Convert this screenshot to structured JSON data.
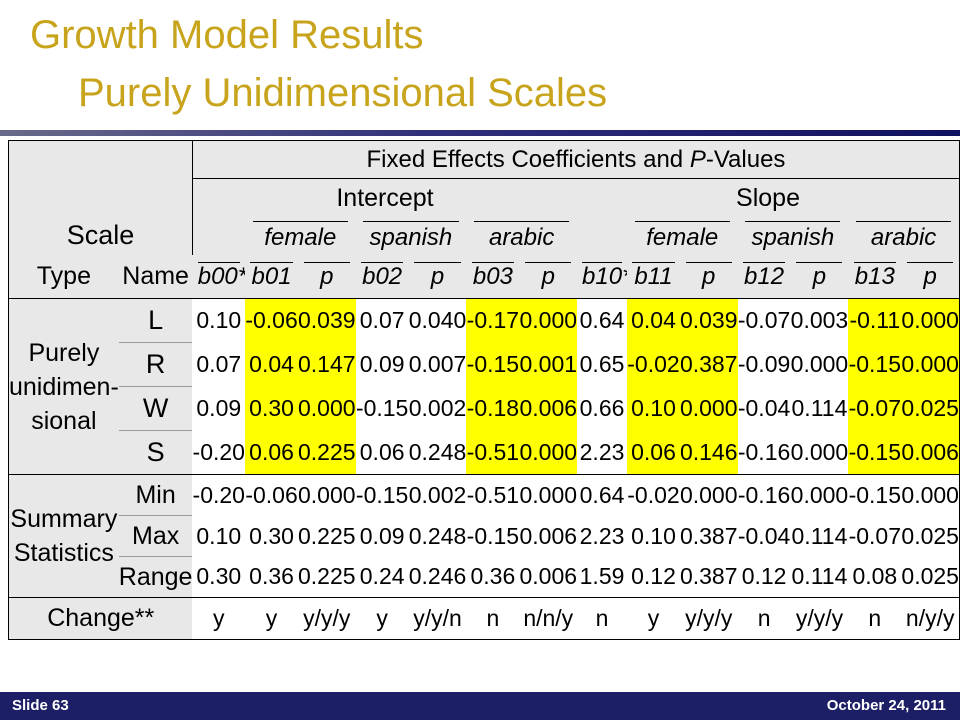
{
  "title": {
    "line1": "Growth Model Results",
    "line2": "Purely Unidimensional Scales"
  },
  "table": {
    "header": {
      "top": "Fixed Effects Coefficients and P-Values",
      "top_prefix": "Fixed Effects Coefficients and ",
      "top_p": "P",
      "top_suffix": "-Values",
      "scale": "Scale",
      "intercept": "Intercept",
      "slope": "Slope",
      "groups": [
        "female",
        "spanish",
        "arabic",
        "female",
        "spanish",
        "arabic"
      ],
      "type": "Type",
      "name": "Name",
      "cols": [
        "b00*",
        "b01",
        "p",
        "b02",
        "p",
        "b03",
        "p",
        "b10*",
        "b11",
        "p",
        "b12",
        "p",
        "b13",
        "p"
      ]
    },
    "section1": {
      "label_lines": [
        "Purely",
        "unidimen-",
        "sional"
      ],
      "rows": [
        {
          "name": "L",
          "values": [
            "0.10",
            "-0.06",
            "0.039",
            "0.07",
            "0.040",
            "-0.17",
            "0.000",
            "0.64",
            "0.04",
            "0.039",
            "-0.07",
            "0.003",
            "-0.11",
            "0.000"
          ]
        },
        {
          "name": "R",
          "values": [
            "0.07",
            "0.04",
            "0.147",
            "0.09",
            "0.007",
            "-0.15",
            "0.001",
            "0.65",
            "-0.02",
            "0.387",
            "-0.09",
            "0.000",
            "-0.15",
            "0.000"
          ]
        },
        {
          "name": "W",
          "values": [
            "0.09",
            "0.30",
            "0.000",
            "-0.15",
            "0.002",
            "-0.18",
            "0.006",
            "0.66",
            "0.10",
            "0.000",
            "-0.04",
            "0.114",
            "-0.07",
            "0.025"
          ]
        },
        {
          "name": "S",
          "values": [
            "-0.20",
            "0.06",
            "0.225",
            "0.06",
            "0.248",
            "-0.51",
            "0.000",
            "2.23",
            "0.06",
            "0.146",
            "-0.16",
            "0.000",
            "-0.15",
            "0.006"
          ]
        }
      ]
    },
    "section2": {
      "label_lines": [
        "Summary",
        "Statistics"
      ],
      "rows": [
        {
          "name": "Min",
          "values": [
            "-0.20",
            "-0.06",
            "0.000",
            "-0.15",
            "0.002",
            "-0.51",
            "0.000",
            "0.64",
            "-0.02",
            "0.000",
            "-0.16",
            "0.000",
            "-0.15",
            "0.000"
          ]
        },
        {
          "name": "Max",
          "values": [
            "0.10",
            "0.30",
            "0.225",
            "0.09",
            "0.248",
            "-0.15",
            "0.006",
            "2.23",
            "0.10",
            "0.387",
            "-0.04",
            "0.114",
            "-0.07",
            "0.025"
          ]
        },
        {
          "name": "Range",
          "values": [
            "0.30",
            "0.36",
            "0.225",
            "0.24",
            "0.246",
            "0.36",
            "0.006",
            "1.59",
            "0.12",
            "0.387",
            "0.12",
            "0.114",
            "0.08",
            "0.025"
          ]
        }
      ]
    },
    "change": {
      "label": "Change**",
      "values": [
        "y",
        "y",
        "y/y/y",
        "y",
        "y/y/n",
        "n",
        "n/n/y",
        "n",
        "y",
        "y/y/y",
        "n",
        "y/y/y",
        "n",
        "n/y/y"
      ]
    },
    "highlight_color": "#ffff00",
    "shade_color": "#e8e8e8"
  },
  "footer": {
    "left": "Slide 63",
    "right": "October 24, 2011",
    "bg_color": "#1c1f66"
  }
}
